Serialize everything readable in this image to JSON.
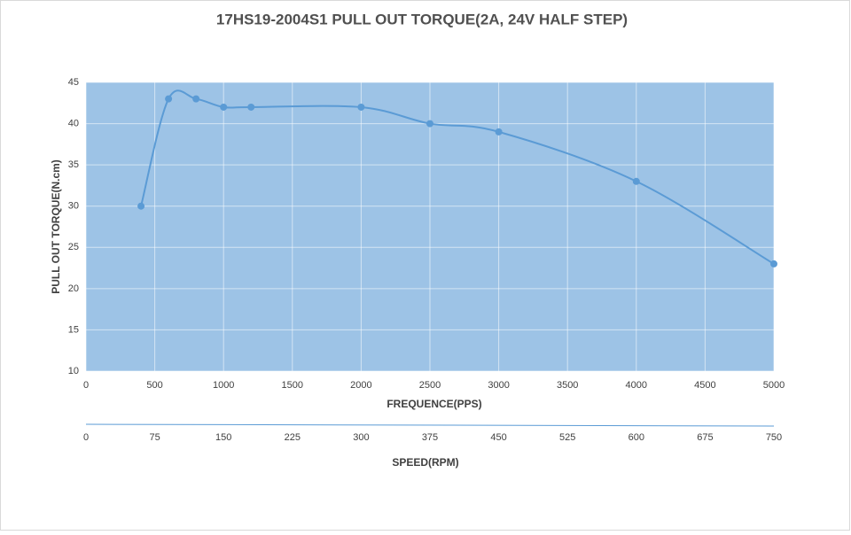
{
  "chart_data": {
    "type": "line",
    "title": "17HS19-2004S1 PULL OUT TORQUE(2A, 24V HALF STEP)",
    "x_label": "FREQUENCE(PPS)",
    "y_label": "PULL OUT TORQUE(N.cm)",
    "x2_label": "SPEED(RPM)",
    "x": [
      400,
      600,
      800,
      1000,
      1200,
      2000,
      2500,
      3000,
      4000,
      5000
    ],
    "series": [
      {
        "name": "PULL OUT TORQUE",
        "color": "#5b9bd5",
        "values": [
          30,
          43,
          43,
          42,
          42,
          42,
          40,
          39,
          33,
          23
        ]
      }
    ],
    "xlim": [
      0,
      5000
    ],
    "xticks": [
      0,
      500,
      1000,
      1500,
      2000,
      2500,
      3000,
      3500,
      4000,
      4500,
      5000
    ],
    "ylim": [
      10,
      45
    ],
    "yticks": [
      10,
      15,
      20,
      25,
      30,
      35,
      40,
      45
    ],
    "x2lim": [
      0,
      750
    ],
    "x2ticks": [
      0,
      75,
      150,
      225,
      300,
      375,
      450,
      525,
      600,
      675,
      750
    ],
    "grid": true,
    "plot_background": "#9dc3e6",
    "smooth": true
  }
}
